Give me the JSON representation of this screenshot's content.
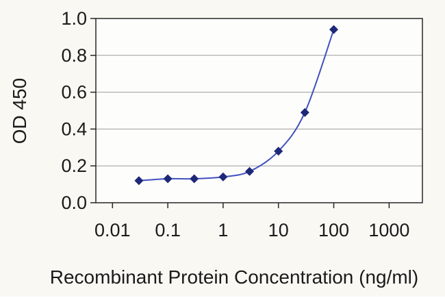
{
  "chart_data": {
    "type": "line",
    "title": "",
    "xlabel": "Recombinant Protein Concentration (ng/ml)",
    "ylabel": "OD 450",
    "x_scale": "log",
    "x": [
      0.03,
      0.1,
      0.3,
      1,
      3,
      10,
      30,
      100
    ],
    "series": [
      {
        "name": "OD 450",
        "values": [
          0.12,
          0.13,
          0.13,
          0.14,
          0.17,
          0.28,
          0.49,
          0.94
        ]
      }
    ],
    "xlim": [
      0.005,
      4000
    ],
    "ylim": [
      0,
      1.0
    ],
    "x_ticks": [
      0.01,
      0.1,
      1,
      10,
      100,
      1000
    ],
    "x_tick_labels": [
      "0.01",
      "0.1",
      "1",
      "10",
      "100",
      "1000"
    ],
    "y_ticks": [
      0,
      0.2,
      0.4,
      0.6,
      0.8,
      1
    ],
    "y_tick_labels": [
      "0.0",
      "0.2",
      "0.4",
      "0.6",
      "0.8",
      "1.0"
    ],
    "grid": "horizontal-y",
    "legend": "none",
    "marker": "diamond",
    "colors": {
      "line": "#4050c0",
      "marker": "#1e2878",
      "grid": "#9b9b9b",
      "frame": "#262626",
      "text": "#1a1a1a",
      "plot_background": "#fdfdfb",
      "background": "#f9f8f3"
    }
  }
}
